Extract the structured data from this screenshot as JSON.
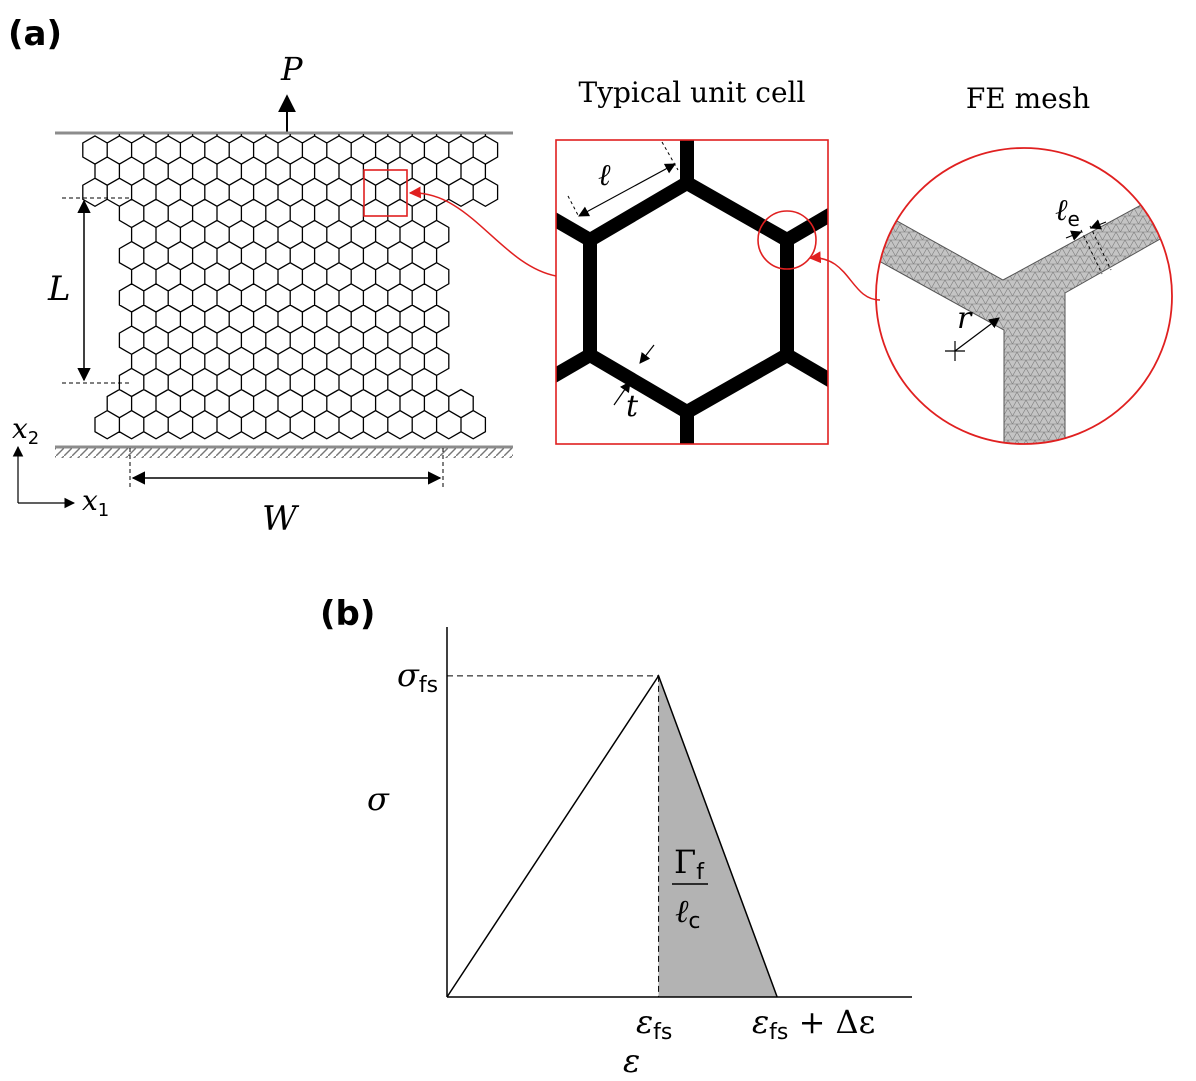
{
  "panel_a": {
    "label": "(a)",
    "load_label": "P",
    "length_label": "L",
    "width_label": "W",
    "axis_x2": {
      "base": "x",
      "sub": "2"
    },
    "axis_x1": {
      "base": "x",
      "sub": "1"
    },
    "unit_cell_title": "Typical unit cell",
    "unit_cell_length": "ℓ",
    "unit_cell_thickness": "t",
    "mesh_title": "FE mesh",
    "mesh_element_size": {
      "base": "ℓ",
      "sub": "e"
    },
    "mesh_radius": "r",
    "accent_color": "#e02020",
    "mesh_fill": "#c4c4c4"
  },
  "panel_b": {
    "label": "(b)",
    "y_axis_label": "σ",
    "x_axis_label": "ε",
    "peak_stress": {
      "base": "σ",
      "sub": "fs"
    },
    "peak_strain": {
      "base": "ε",
      "sub": "fs"
    },
    "final_strain": {
      "base": "ε",
      "sub": "fs",
      "suffix": " + Δε"
    },
    "area_numerator": {
      "base": "Γ",
      "sub": "f"
    },
    "area_denominator": {
      "base": "ℓ",
      "sub": "c"
    },
    "area_fill": "#b3b3b3"
  },
  "chart_data": {
    "type": "line",
    "title": "",
    "xlabel": "ε",
    "ylabel": "σ",
    "x_ticks": [
      "ε_fs",
      "ε_fs + Δε"
    ],
    "y_ticks": [
      "σ_fs"
    ],
    "series": [
      {
        "x": [
          "0",
          "ε_fs",
          "ε_fs + Δε"
        ],
        "y": [
          "0",
          "σ_fs",
          "0"
        ]
      }
    ],
    "shaded_region": {
      "label": "Γ_f / ℓ_c",
      "x_from": "ε_fs",
      "x_to": "ε_fs + Δε"
    },
    "grid": false
  }
}
